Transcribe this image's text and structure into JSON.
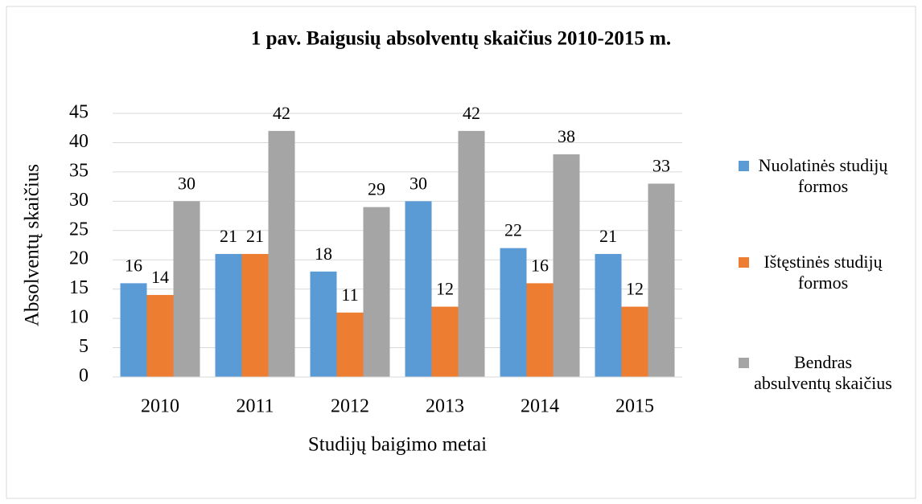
{
  "chart_data": {
    "type": "bar",
    "title": "1 pav. Baigusių absolventų skaičius 2010-2015 m.",
    "x_label": "Studijų baigimo metai",
    "y_label": "Absolventų skaičius",
    "categories": [
      "2010",
      "2011",
      "2012",
      "2013",
      "2014",
      "2015"
    ],
    "series": [
      {
        "name": "Nuolatinės studijų formos",
        "color": "#5b9bd5",
        "values": [
          16,
          21,
          18,
          30,
          22,
          21
        ]
      },
      {
        "name": "Ištęstinės studijų formos",
        "color": "#ed7d31",
        "values": [
          14,
          21,
          11,
          12,
          16,
          12
        ]
      },
      {
        "name": "Bendras absulventų skaičius",
        "color": "#a5a5a5",
        "values": [
          30,
          42,
          29,
          42,
          38,
          33
        ]
      }
    ],
    "ylim": [
      0,
      45
    ],
    "yticks": [
      0,
      5,
      10,
      15,
      20,
      25,
      30,
      35,
      40,
      45
    ],
    "grid": true,
    "legend": "right"
  }
}
